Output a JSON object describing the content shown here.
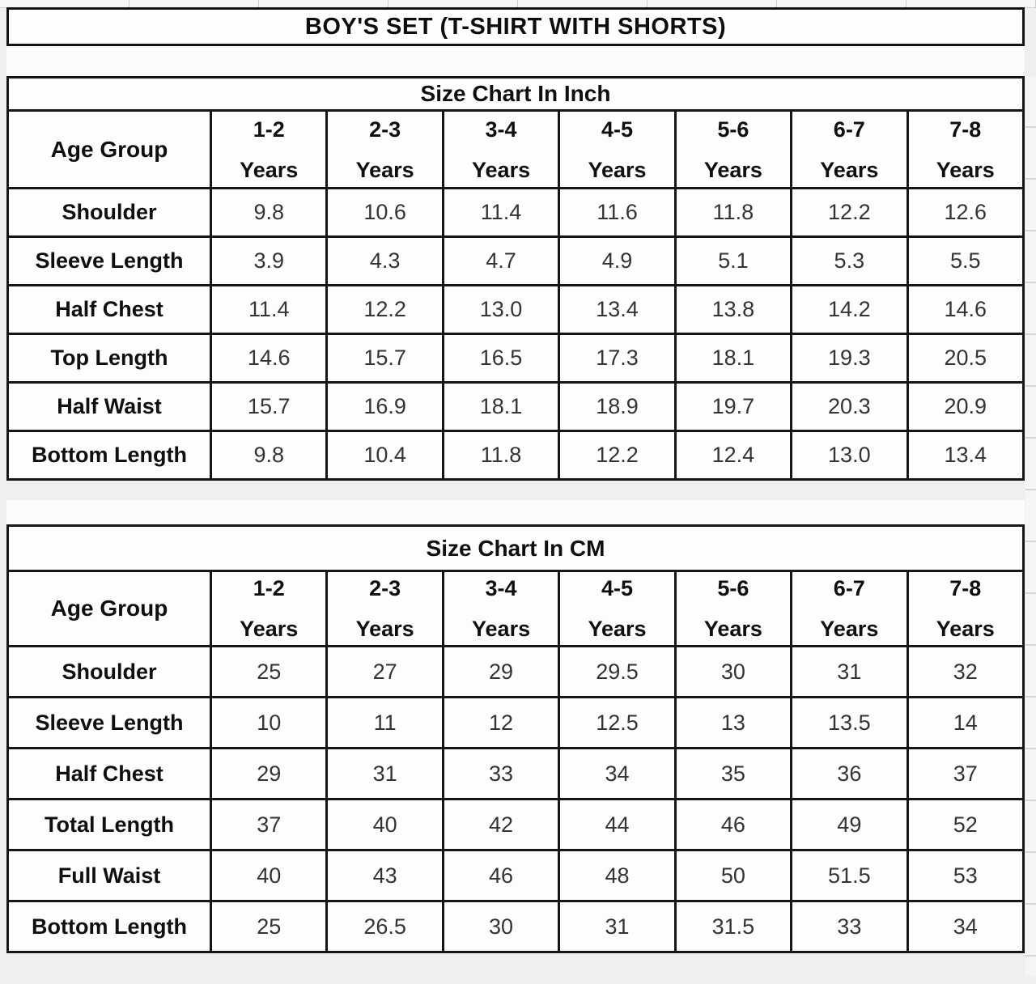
{
  "page_title": "BOY'S SET (T-SHIRT WITH SHORTS)",
  "chart_data": [
    {
      "type": "table",
      "title": "Size Chart In Inch",
      "corner": "Age Group",
      "columns": [
        {
          "range": "1-2",
          "unit": "Years"
        },
        {
          "range": "2-3",
          "unit": "Years"
        },
        {
          "range": "3-4",
          "unit": "Years"
        },
        {
          "range": "4-5",
          "unit": "Years"
        },
        {
          "range": "5-6",
          "unit": "Years"
        },
        {
          "range": "6-7",
          "unit": "Years"
        },
        {
          "range": "7-8",
          "unit": "Years"
        }
      ],
      "rows": [
        {
          "label": "Shoulder",
          "values": [
            "9.8",
            "10.6",
            "11.4",
            "11.6",
            "11.8",
            "12.2",
            "12.6"
          ]
        },
        {
          "label": "Sleeve Length",
          "values": [
            "3.9",
            "4.3",
            "4.7",
            "4.9",
            "5.1",
            "5.3",
            "5.5"
          ]
        },
        {
          "label": "Half Chest",
          "values": [
            "11.4",
            "12.2",
            "13.0",
            "13.4",
            "13.8",
            "14.2",
            "14.6"
          ]
        },
        {
          "label": "Top Length",
          "values": [
            "14.6",
            "15.7",
            "16.5",
            "17.3",
            "18.1",
            "19.3",
            "20.5"
          ]
        },
        {
          "label": "Half Waist",
          "values": [
            "15.7",
            "16.9",
            "18.1",
            "18.9",
            "19.7",
            "20.3",
            "20.9"
          ]
        },
        {
          "label": "Bottom Length",
          "values": [
            "9.8",
            "10.4",
            "11.8",
            "12.2",
            "12.4",
            "13.0",
            "13.4"
          ]
        }
      ]
    },
    {
      "type": "table",
      "title": "Size Chart In CM",
      "corner": "Age Group",
      "columns": [
        {
          "range": "1-2",
          "unit": "Years"
        },
        {
          "range": "2-3",
          "unit": "Years"
        },
        {
          "range": "3-4",
          "unit": "Years"
        },
        {
          "range": "4-5",
          "unit": "Years"
        },
        {
          "range": "5-6",
          "unit": "Years"
        },
        {
          "range": "6-7",
          "unit": "Years"
        },
        {
          "range": "7-8",
          "unit": "Years"
        }
      ],
      "rows": [
        {
          "label": "Shoulder",
          "values": [
            "25",
            "27",
            "29",
            "29.5",
            "30",
            "31",
            "32"
          ]
        },
        {
          "label": "Sleeve Length",
          "values": [
            "10",
            "11",
            "12",
            "12.5",
            "13",
            "13.5",
            "14"
          ]
        },
        {
          "label": "Half Chest",
          "values": [
            "29",
            "31",
            "33",
            "34",
            "35",
            "36",
            "37"
          ]
        },
        {
          "label": "Total Length",
          "values": [
            "37",
            "40",
            "42",
            "44",
            "46",
            "49",
            "52"
          ]
        },
        {
          "label": "Full Waist",
          "values": [
            "40",
            "43",
            "46",
            "48",
            "50",
            "51.5",
            "53"
          ]
        },
        {
          "label": "Bottom Length",
          "values": [
            "25",
            "26.5",
            "30",
            "31",
            "31.5",
            "33",
            "34"
          ]
        }
      ]
    }
  ]
}
